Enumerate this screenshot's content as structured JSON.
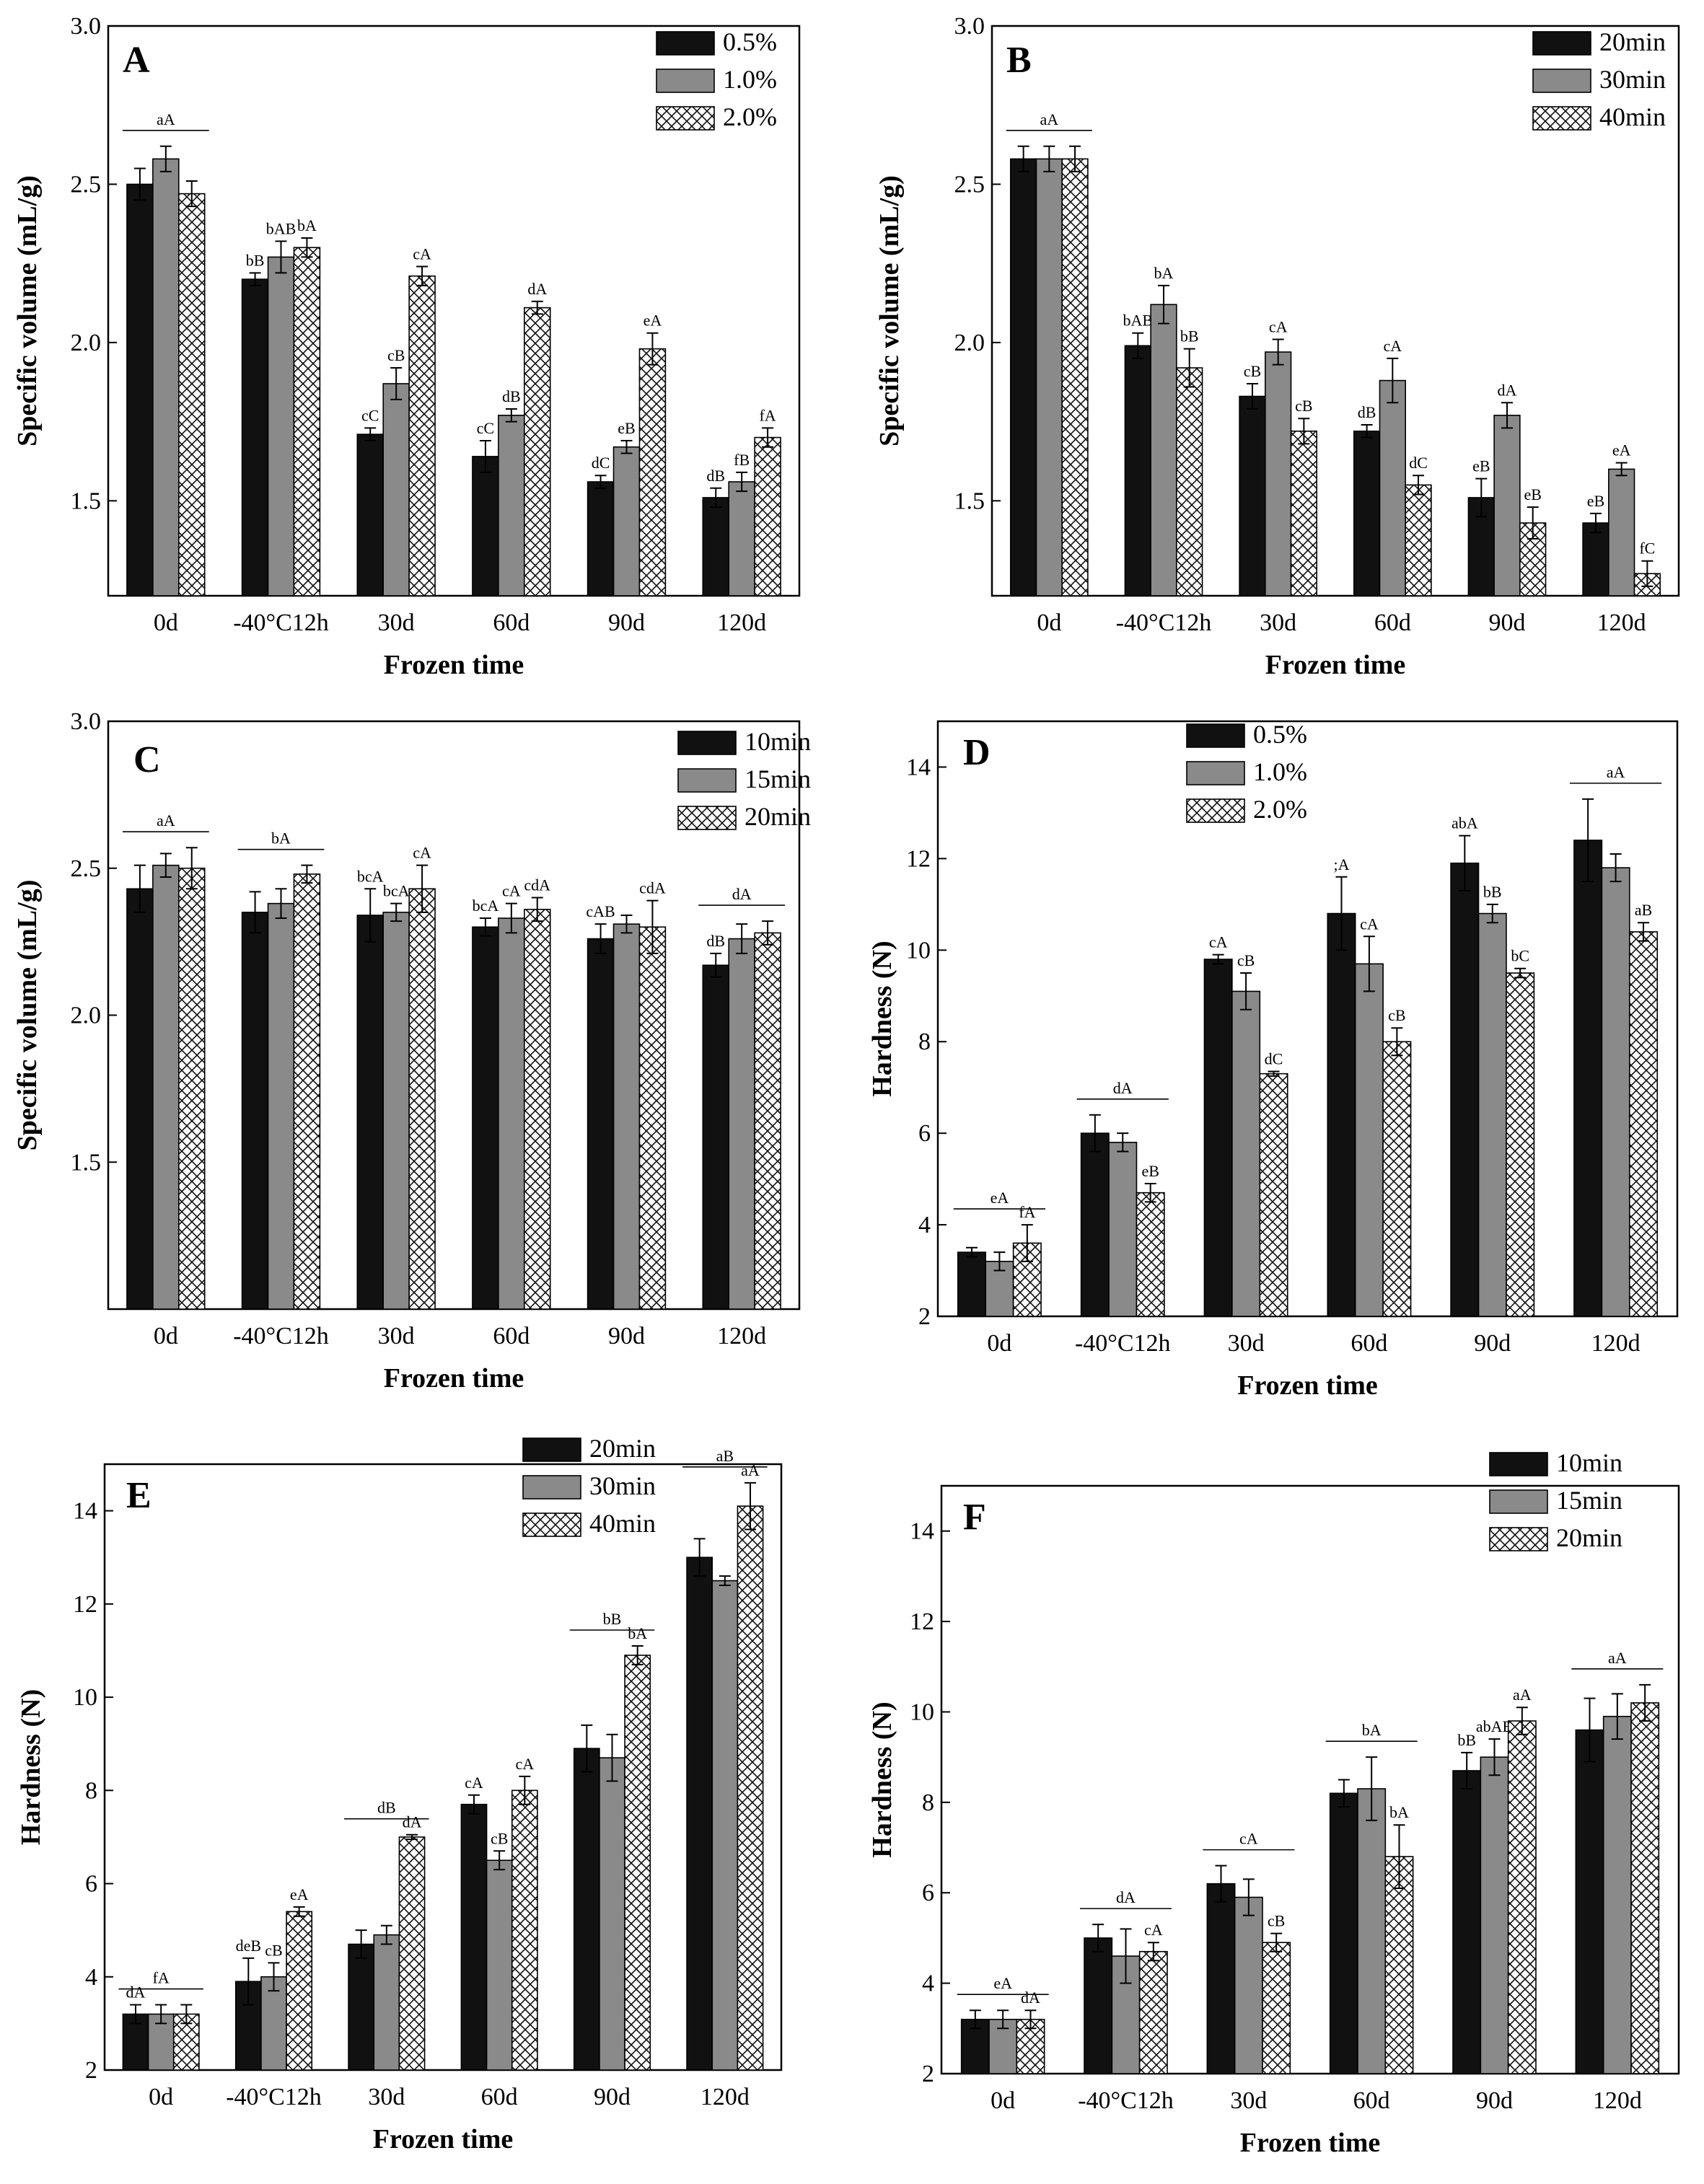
{
  "figure": {
    "panels": [
      {
        "letter": "A",
        "chart_data": {
          "type": "bar",
          "title": "",
          "xlabel": "Frozen time",
          "ylabel": "Specific volume (mL/g)",
          "ylim": [
            1.2,
            3.0
          ],
          "yticks": [
            "1.5",
            "2.0",
            "2.5",
            "3.0"
          ],
          "categories": [
            "0d",
            "-40°C12h",
            "30d",
            "60d",
            "90d",
            "120d"
          ],
          "series": [
            {
              "name": "0.5%",
              "values": [
                2.5,
                2.2,
                1.71,
                1.64,
                1.56,
                1.51
              ],
              "errors": [
                0.05,
                0.02,
                0.02,
                0.05,
                0.02,
                0.03
              ],
              "labels": [
                "",
                "bB",
                "cC",
                "cC",
                "dC",
                "dB"
              ]
            },
            {
              "name": "1.0%",
              "values": [
                2.58,
                2.27,
                1.87,
                1.77,
                1.67,
                1.56
              ],
              "errors": [
                0.04,
                0.05,
                0.05,
                0.02,
                0.02,
                0.03
              ],
              "labels": [
                "",
                "bAB",
                "cB",
                "dB",
                "eB",
                "fB"
              ]
            },
            {
              "name": "2.0%",
              "values": [
                2.47,
                2.3,
                2.21,
                2.11,
                1.98,
                1.7
              ],
              "errors": [
                0.04,
                0.03,
                0.03,
                0.02,
                0.05,
                0.03
              ],
              "labels": [
                "",
                "bA",
                "cA",
                "dA",
                "eA",
                "fA"
              ]
            }
          ],
          "group_labels": [
            {
              "group": 0,
              "text": "aA"
            }
          ],
          "legend_position": "top-right"
        }
      },
      {
        "letter": "B",
        "chart_data": {
          "type": "bar",
          "title": "",
          "xlabel": "Frozen time",
          "ylabel": "Specific volume (mL/g)",
          "ylim": [
            1.2,
            3.0
          ],
          "yticks": [
            "1.5",
            "2.0",
            "2.5",
            "3.0"
          ],
          "categories": [
            "0d",
            "-40°C12h",
            "30d",
            "60d",
            "90d",
            "120d"
          ],
          "series": [
            {
              "name": "20min",
              "values": [
                2.58,
                1.99,
                1.83,
                1.72,
                1.51,
                1.43
              ],
              "errors": [
                0.04,
                0.04,
                0.04,
                0.02,
                0.06,
                0.03
              ],
              "labels": [
                "",
                "bAB",
                "cB",
                "dB",
                "eB",
                "eB"
              ]
            },
            {
              "name": "30min",
              "values": [
                2.58,
                2.12,
                1.97,
                1.88,
                1.77,
                1.6
              ],
              "errors": [
                0.04,
                0.06,
                0.04,
                0.07,
                0.04,
                0.02
              ],
              "labels": [
                "",
                "bA",
                "cA",
                "cA",
                "dA",
                "eA"
              ]
            },
            {
              "name": "40min",
              "values": [
                2.58,
                1.92,
                1.72,
                1.55,
                1.43,
                1.27
              ],
              "errors": [
                0.04,
                0.06,
                0.04,
                0.03,
                0.05,
                0.04
              ],
              "labels": [
                "",
                "bB",
                "cB",
                "dC",
                "eB",
                "fC"
              ]
            }
          ],
          "group_labels": [
            {
              "group": 0,
              "text": "aA"
            }
          ],
          "legend_position": "top-right"
        }
      },
      {
        "letter": "C",
        "chart_data": {
          "type": "bar",
          "title": "",
          "xlabel": "Frozen time",
          "ylabel": "Specific volume (mL/g)",
          "ylim": [
            1.0,
            3.0
          ],
          "yticks": [
            "1.5",
            "2.0",
            "2.5",
            "3.0"
          ],
          "categories": [
            "0d",
            "-40°C12h",
            "30d",
            "60d",
            "90d",
            "120d"
          ],
          "series": [
            {
              "name": "10min",
              "values": [
                2.43,
                2.35,
                2.34,
                2.3,
                2.26,
                2.17
              ],
              "errors": [
                0.08,
                0.07,
                0.09,
                0.03,
                0.05,
                0.04
              ],
              "labels": [
                "",
                "",
                "bcA",
                "bcA",
                "cAB",
                "dB"
              ]
            },
            {
              "name": "15min",
              "values": [
                2.51,
                2.38,
                2.35,
                2.33,
                2.31,
                2.26
              ],
              "errors": [
                0.04,
                0.05,
                0.03,
                0.05,
                0.03,
                0.05
              ],
              "labels": [
                "",
                "",
                "bcA",
                "cA",
                "",
                ""
              ]
            },
            {
              "name": "20min",
              "values": [
                2.5,
                2.48,
                2.43,
                2.36,
                2.3,
                2.28
              ],
              "errors": [
                0.07,
                0.03,
                0.08,
                0.04,
                0.09,
                0.04
              ],
              "labels": [
                "",
                "",
                "cA",
                "cdA",
                "cdA",
                ""
              ]
            }
          ],
          "group_labels": [
            {
              "group": 0,
              "text": "aA"
            },
            {
              "group": 1,
              "text": "bA"
            },
            {
              "group": 5,
              "text": "dA"
            }
          ],
          "legend_position": "top-right"
        }
      },
      {
        "letter": "D",
        "chart_data": {
          "type": "bar",
          "title": "",
          "xlabel": "Frozen time",
          "ylabel": "Hardness (N)",
          "ylim": [
            2,
            15
          ],
          "yticks": [
            "2",
            "4",
            "6",
            "8",
            "10",
            "12",
            "14"
          ],
          "categories": [
            "0d",
            "-40°C12h",
            "30d",
            "60d",
            "90d",
            "120d"
          ],
          "series": [
            {
              "name": "0.5%",
              "values": [
                3.4,
                6.0,
                9.8,
                10.8,
                11.9,
                12.4
              ],
              "errors": [
                0.1,
                0.4,
                0.1,
                0.8,
                0.6,
                0.9
              ],
              "labels": [
                "",
                "",
                "cA",
                ";A",
                "abA",
                ""
              ]
            },
            {
              "name": "1.0%",
              "values": [
                3.2,
                5.8,
                9.1,
                9.7,
                10.8,
                11.8
              ],
              "errors": [
                0.2,
                0.2,
                0.4,
                0.6,
                0.2,
                0.3
              ],
              "labels": [
                "",
                "",
                "cB",
                "cA",
                "bB",
                ""
              ]
            },
            {
              "name": "2.0%",
              "values": [
                3.6,
                4.7,
                7.3,
                8.0,
                9.5,
                10.4
              ],
              "errors": [
                0.4,
                0.2,
                0.05,
                0.3,
                0.1,
                0.2
              ],
              "labels": [
                "fA",
                "eB",
                "dC",
                "cB",
                "bC",
                "aB"
              ]
            }
          ],
          "group_labels": [
            {
              "group": 0,
              "text": "eA"
            },
            {
              "group": 1,
              "text": "dA"
            },
            {
              "group": 5,
              "text": "aA"
            }
          ],
          "legend_position": "top-left"
        }
      },
      {
        "letter": "E",
        "chart_data": {
          "type": "bar",
          "title": "",
          "xlabel": "Frozen time",
          "ylabel": "Hardness (N)",
          "ylim": [
            2,
            15
          ],
          "yticks": [
            "2",
            "4",
            "6",
            "8",
            "10",
            "12",
            "14"
          ],
          "categories": [
            "0d",
            "-40°C12h",
            "30d",
            "60d",
            "90d",
            "120d"
          ],
          "series": [
            {
              "name": "20min",
              "values": [
                3.2,
                3.9,
                4.7,
                7.7,
                8.9,
                13.0
              ],
              "errors": [
                0.2,
                0.5,
                0.3,
                0.2,
                0.5,
                0.4
              ],
              "labels": [
                "dA",
                "deB",
                "",
                "cA",
                "",
                ""
              ]
            },
            {
              "name": "30min",
              "values": [
                3.2,
                4.0,
                4.9,
                6.5,
                8.7,
                12.5
              ],
              "errors": [
                0.2,
                0.3,
                0.2,
                0.2,
                0.5,
                0.1
              ],
              "labels": [
                "",
                "cB",
                "",
                "cB",
                "",
                ""
              ]
            },
            {
              "name": "40min",
              "values": [
                3.2,
                5.4,
                7.0,
                8.0,
                10.9,
                14.1
              ],
              "errors": [
                0.2,
                0.1,
                0.05,
                0.3,
                0.2,
                0.5
              ],
              "labels": [
                "",
                "eA",
                "dA",
                "cA",
                "bA",
                "aA"
              ]
            }
          ],
          "group_labels": [
            {
              "group": 0,
              "text": "fA"
            },
            {
              "group": 2,
              "text": "dB"
            },
            {
              "group": 4,
              "text": "bB"
            },
            {
              "group": 5,
              "text": "aB"
            }
          ],
          "legend_position": "top-right"
        }
      },
      {
        "letter": "F",
        "chart_data": {
          "type": "bar",
          "title": "",
          "xlabel": "Frozen time",
          "ylabel": "Hardness (N)",
          "ylim": [
            2,
            15
          ],
          "yticks": [
            "2",
            "4",
            "6",
            "8",
            "10",
            "12",
            "14"
          ],
          "categories": [
            "0d",
            "-40°C12h",
            "30d",
            "60d",
            "90d",
            "120d"
          ],
          "series": [
            {
              "name": "10min",
              "values": [
                3.2,
                5.0,
                6.2,
                8.2,
                8.7,
                9.6
              ],
              "errors": [
                0.2,
                0.3,
                0.4,
                0.3,
                0.4,
                0.7
              ],
              "labels": [
                "",
                "",
                "",
                "",
                "bB",
                ""
              ]
            },
            {
              "name": "15min",
              "values": [
                3.2,
                4.6,
                5.9,
                8.3,
                9.0,
                9.9
              ],
              "errors": [
                0.2,
                0.6,
                0.4,
                0.7,
                0.4,
                0.5
              ],
              "labels": [
                "",
                "",
                "",
                "",
                "abAB",
                ""
              ]
            },
            {
              "name": "20min",
              "values": [
                3.2,
                4.7,
                4.9,
                6.8,
                9.8,
                10.2
              ],
              "errors": [
                0.2,
                0.2,
                0.2,
                0.7,
                0.3,
                0.4
              ],
              "labels": [
                "dA",
                "cA",
                "cB",
                "bA",
                "aA",
                ""
              ]
            }
          ],
          "group_labels": [
            {
              "group": 0,
              "text": "eA"
            },
            {
              "group": 1,
              "text": "dA"
            },
            {
              "group": 2,
              "text": "cA"
            },
            {
              "group": 3,
              "text": "bA"
            },
            {
              "group": 5,
              "text": "aA"
            }
          ],
          "legend_position": "top-right"
        }
      }
    ]
  }
}
